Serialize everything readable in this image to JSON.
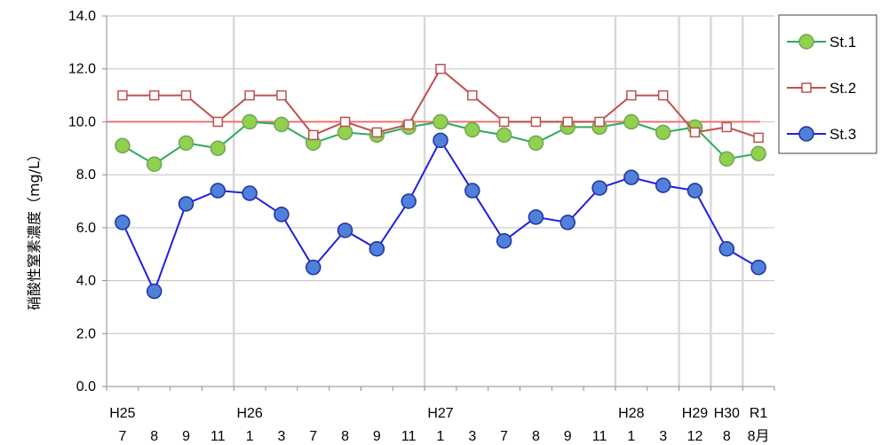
{
  "chart_data": {
    "type": "line",
    "ylabel": "硝酸性窒素濃度（mg/L）",
    "ylim": [
      0,
      14
    ],
    "yticks": [
      "0.0",
      "2.0",
      "4.0",
      "6.0",
      "8.0",
      "10.0",
      "12.0",
      "14.0"
    ],
    "grid": "horizontal",
    "legend_position": "top-right",
    "x_month_labels": [
      "7",
      "8",
      "9",
      "11",
      "1",
      "3",
      "7",
      "8",
      "9",
      "11",
      "1",
      "3",
      "7",
      "8",
      "9",
      "11",
      "1",
      "3",
      "12",
      "8",
      "8月"
    ],
    "x_year_labels": [
      {
        "index": 0,
        "text": "H25"
      },
      {
        "index": 4,
        "text": "H26"
      },
      {
        "index": 10,
        "text": "H27"
      },
      {
        "index": 16,
        "text": "H28"
      },
      {
        "index": 18,
        "text": "H29"
      },
      {
        "index": 19,
        "text": "H30"
      },
      {
        "index": 20,
        "text": "R1"
      }
    ],
    "year_separators_after_index": [
      3,
      9,
      15,
      17,
      18,
      19
    ],
    "reference_line": {
      "value": 10.0,
      "color": "#f07070"
    },
    "series": [
      {
        "name": "St.1",
        "color": "#2eaa5e",
        "marker": "circle",
        "marker_fill": "#92d050",
        "marker_stroke": "#6aa84f",
        "values": [
          9.1,
          8.4,
          9.2,
          9.0,
          10.0,
          9.9,
          9.2,
          9.6,
          9.5,
          9.8,
          10.0,
          9.7,
          9.5,
          9.2,
          9.8,
          9.8,
          10.0,
          9.6,
          9.8,
          8.6,
          8.8
        ]
      },
      {
        "name": "St.2",
        "color": "#c0504d",
        "marker": "square",
        "marker_fill": "#ffffff",
        "marker_stroke": "#c0504d",
        "values": [
          11.0,
          11.0,
          11.0,
          10.0,
          11.0,
          11.0,
          9.5,
          10.0,
          9.6,
          9.9,
          12.0,
          11.0,
          10.0,
          10.0,
          10.0,
          10.0,
          11.0,
          11.0,
          9.6,
          9.8,
          9.4
        ]
      },
      {
        "name": "St.3",
        "color": "#1f1fe0",
        "marker": "circle",
        "marker_fill": "#4f81d9",
        "marker_stroke": "#1f2fa8",
        "values": [
          6.2,
          3.6,
          6.9,
          7.4,
          7.3,
          6.5,
          4.5,
          5.9,
          5.2,
          7.0,
          9.3,
          7.4,
          5.5,
          6.4,
          6.2,
          7.5,
          7.9,
          7.6,
          7.4,
          5.2,
          4.5
        ]
      }
    ]
  }
}
